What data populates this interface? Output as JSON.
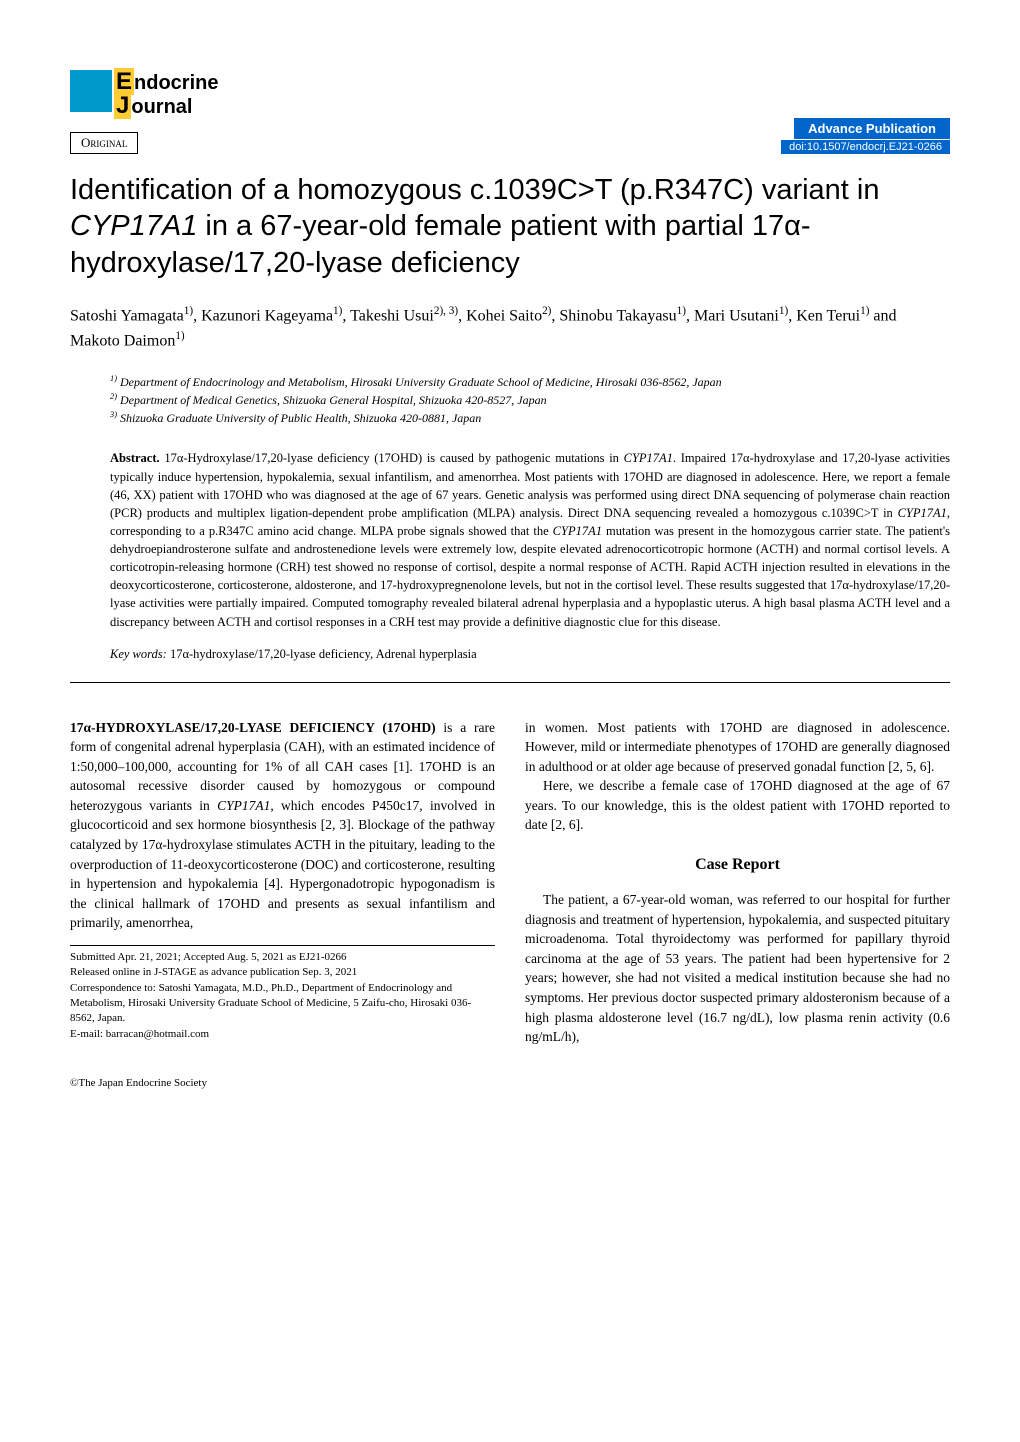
{
  "journal": {
    "line1_first": "E",
    "line1_rest": "ndocrine",
    "line2_first": "J",
    "line2_rest": "ournal"
  },
  "badge": {
    "original": "Original",
    "advance_pub": "Advance Publication",
    "doi": "doi:10.1507/endocrj.EJ21-0266"
  },
  "title": "Identification of a homozygous c.1039C>T (p.R347C) variant in CYP17A1 in a 67-year-old female patient with partial 17α-hydroxylase/17,20-lyase deficiency",
  "authors_html": "Satoshi Yamagata<sup>1)</sup>, Kazunori Kageyama<sup>1)</sup>, Takeshi Usui<sup>2), 3)</sup>, Kohei Saito<sup>2)</sup>, Shinobu Takayasu<sup>1)</sup>, Mari Usutani<sup>1)</sup>, Ken Terui<sup>1)</sup> and Makoto Daimon<sup>1)</sup>",
  "affiliations": {
    "a1": "1) Department of Endocrinology and Metabolism, Hirosaki University Graduate School of Medicine, Hirosaki 036-8562, Japan",
    "a2": "2) Department of Medical Genetics, Shizuoka General Hospital, Shizuoka 420-8527, Japan",
    "a3": "3) Shizuoka Graduate University of Public Health, Shizuoka 420-0881, Japan"
  },
  "abstract": {
    "label": "Abstract.",
    "text": " 17α-Hydroxylase/17,20-lyase deficiency (17OHD) is caused by pathogenic mutations in CYP17A1. Impaired 17α-hydroxylase and 17,20-lyase activities typically induce hypertension, hypokalemia, sexual infantilism, and amenorrhea. Most patients with 17OHD are diagnosed in adolescence. Here, we report a female (46, XX) patient with 17OHD who was diagnosed at the age of 67 years. Genetic analysis was performed using direct DNA sequencing of polymerase chain reaction (PCR) products and multiplex ligation-dependent probe amplification (MLPA) analysis. Direct DNA sequencing revealed a homozygous c.1039C>T in CYP17A1, corresponding to a p.R347C amino acid change. MLPA probe signals showed that the CYP17A1 mutation was present in the homozygous carrier state. The patient's dehydroepiandrosterone sulfate and androstenedione levels were extremely low, despite elevated adrenocorticotropic hormone (ACTH) and normal cortisol levels. A corticotropin-releasing hormone (CRH) test showed no response of cortisol, despite a normal response of ACTH. Rapid ACTH injection resulted in elevations in the deoxycorticosterone, corticosterone, aldosterone, and 17-hydroxypregnenolone levels, but not in the cortisol level. These results suggested that 17α-hydroxylase/17,20-lyase activities were partially impaired. Computed tomography revealed bilateral adrenal hyperplasia and a hypoplastic uterus. A high basal plasma ACTH level and a discrepancy between ACTH and cortisol responses in a CRH test may provide a definitive diagnostic clue for this disease."
  },
  "keywords": {
    "label": "Key words:",
    "text": " 17α-hydroxylase/17,20-lyase deficiency, Adrenal hyperplasia"
  },
  "body": {
    "col1": {
      "p1_caps": "17α-HYDROXYLASE/17,20-LYASE DEFICIENCY (17OHD)",
      "p1_rest": " is a rare form of congenital adrenal hyperplasia (CAH), with an estimated incidence of 1:50,000–100,000, accounting for 1% of all CAH cases [1]. 17OHD is an autosomal recessive disorder caused by homozygous or compound heterozygous variants in CYP17A1, which encodes P450c17, involved in glucocorticoid and sex hormone biosynthesis [2, 3]. Blockage of the pathway catalyzed by 17α-hydroxylase stimulates ACTH in the pituitary, leading to the overproduction of 11-deoxycorticosterone (DOC) and corticosterone, resulting in hypertension and hypokalemia [4]. Hypergonadotropic hypogonadism is the clinical hallmark of 17OHD and presents as sexual infantilism and primarily, amenorrhea,"
    },
    "col2": {
      "p1": "in women. Most patients with 17OHD are diagnosed in adolescence. However, mild or intermediate phenotypes of 17OHD are generally diagnosed in adulthood or at older age because of preserved gonadal function [2, 5, 6].",
      "p2": "Here, we describe a female case of 17OHD diagnosed at the age of 67 years. To our knowledge, this is the oldest patient with 17OHD reported to date [2, 6].",
      "heading": "Case Report",
      "p3": "The patient, a 67-year-old woman, was referred to our hospital for further diagnosis and treatment of hypertension, hypokalemia, and suspected pituitary microadenoma. Total thyroidectomy was performed for papillary thyroid carcinoma at the age of 53 years. The patient had been hypertensive for 2 years; however, she had not visited a medical institution because she had no symptoms. Her previous doctor suspected primary aldosteronism because of a high plasma aldosterone level (16.7 ng/dL), low plasma renin activity (0.6 ng/mL/h),"
    }
  },
  "submission": {
    "line1": "Submitted Apr. 21, 2021; Accepted Aug. 5, 2021 as EJ21-0266",
    "line2": "Released online in J-STAGE as advance publication Sep. 3, 2021",
    "line3": "Correspondence to: Satoshi Yamagata, M.D., Ph.D., Department of Endocrinology and Metabolism, Hirosaki University Graduate School of Medicine, 5 Zaifu-cho, Hirosaki 036-8562, Japan.",
    "line4": "E-mail: barracan@hotmail.com"
  },
  "footer": "©The Japan Endocrine Society",
  "colors": {
    "logo_blue": "#0099cc",
    "logo_yellow": "#ffcc33",
    "advance_blue": "#0066cc",
    "text": "#000000",
    "bg": "#ffffff"
  },
  "fonts": {
    "body": "Times New Roman",
    "title": "Arial",
    "title_size": 29,
    "body_size": 13.5,
    "abstract_size": 12.5,
    "affil_size": 12
  }
}
